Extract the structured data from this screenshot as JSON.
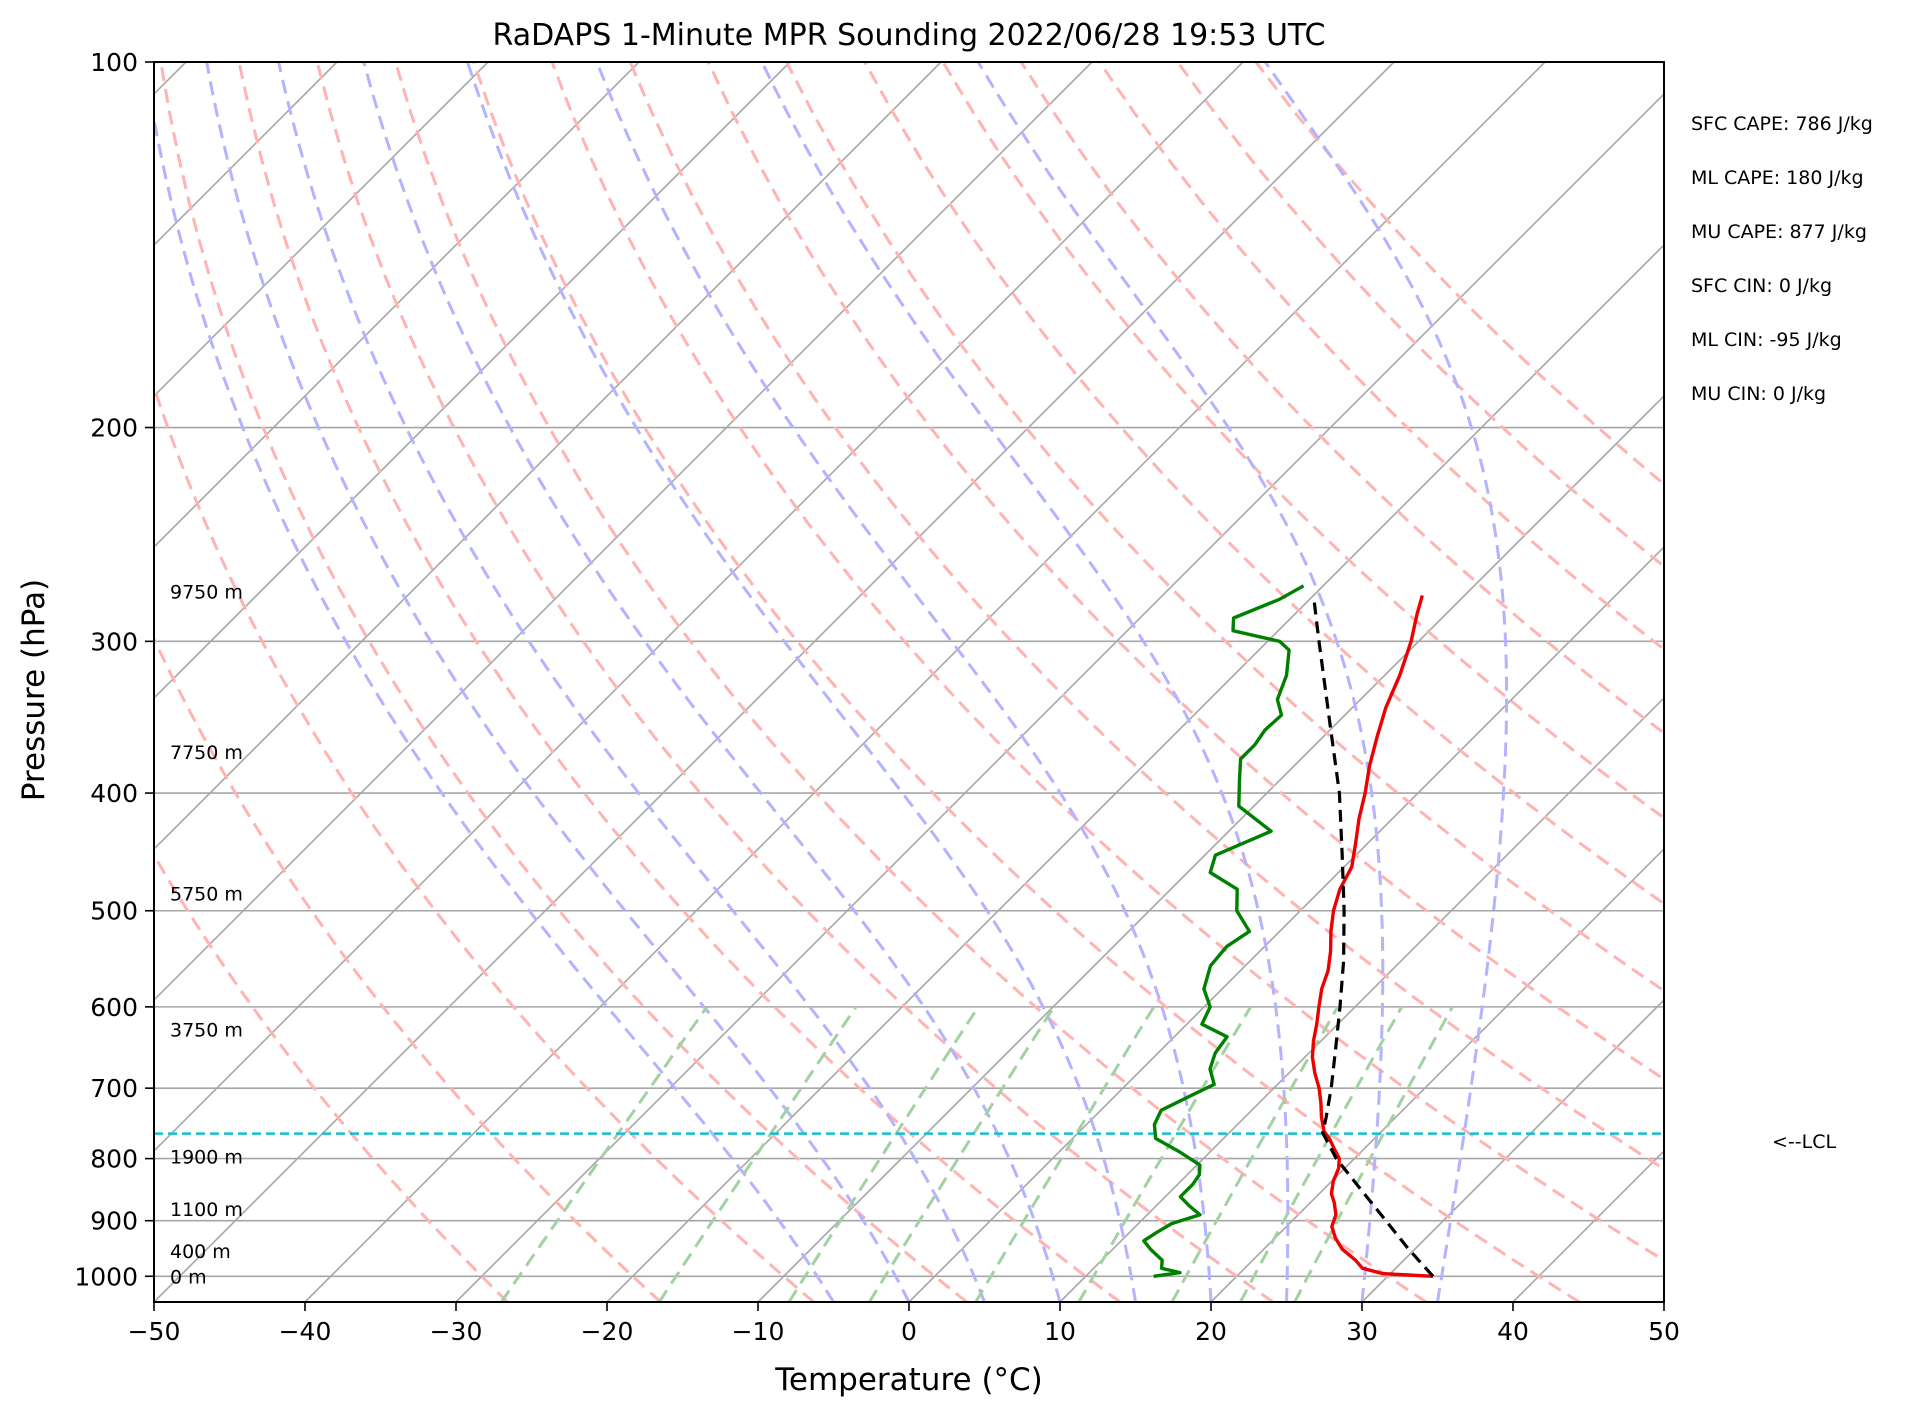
{
  "chart_data": {
    "type": "line",
    "subtype": "skew-T log-P sounding",
    "title": "RaDAPS 1-Minute MPR Sounding 2022/06/28 19:53 UTC",
    "xlabel": "Temperature (°C)",
    "ylabel": "Pressure (hPa)",
    "xlim": [
      -50,
      50
    ],
    "ylim": [
      1050,
      100
    ],
    "y_scale": "log",
    "x_ticks": [
      -50,
      -40,
      -30,
      -20,
      -10,
      0,
      10,
      20,
      30,
      40,
      50
    ],
    "x_tick_labels": [
      "−50",
      "−40",
      "−30",
      "−20",
      "−10",
      "0",
      "10",
      "20",
      "30",
      "40",
      "50"
    ],
    "y_ticks": [
      100,
      200,
      300,
      400,
      500,
      600,
      700,
      800,
      900,
      1000
    ],
    "y_tick_labels": [
      "100",
      "200",
      "300",
      "400",
      "500",
      "600",
      "700",
      "800",
      "900",
      "1000"
    ],
    "grid": true,
    "colors": {
      "temperature": "#ee0000",
      "dewpoint": "#008000",
      "parcel": "#000000",
      "lcl_line": "#17becf",
      "dry_adiabats": "#ffb3b3",
      "moist_adiabats": "#b3b3ff",
      "mixing_ratio": "#a3d1a3",
      "isotherms": "#a6a6a6"
    },
    "series": [
      {
        "role": "temperature",
        "points": [
          [
            1000,
            33.0
          ],
          [
            995,
            29.5
          ],
          [
            985,
            27.8
          ],
          [
            970,
            26.8
          ],
          [
            950,
            25.2
          ],
          [
            930,
            24.0
          ],
          [
            910,
            23.0
          ],
          [
            890,
            22.5
          ],
          [
            870,
            21.6
          ],
          [
            855,
            20.8
          ],
          [
            835,
            20.1
          ],
          [
            815,
            19.6
          ],
          [
            800,
            19.0
          ],
          [
            785,
            18.0
          ],
          [
            770,
            17.0
          ],
          [
            760,
            16.2
          ],
          [
            740,
            15.1
          ],
          [
            720,
            14.1
          ],
          [
            700,
            13.0
          ],
          [
            680,
            11.7
          ],
          [
            660,
            10.5
          ],
          [
            640,
            9.5
          ],
          [
            620,
            8.6
          ],
          [
            600,
            7.6
          ],
          [
            580,
            6.6
          ],
          [
            560,
            5.8
          ],
          [
            540,
            4.7
          ],
          [
            520,
            3.4
          ],
          [
            500,
            2.2
          ],
          [
            480,
            1.2
          ],
          [
            460,
            0.5
          ],
          [
            440,
            -0.8
          ],
          [
            420,
            -2.2
          ],
          [
            400,
            -3.5
          ],
          [
            380,
            -5.0
          ],
          [
            360,
            -6.4
          ],
          [
            340,
            -7.8
          ],
          [
            320,
            -9.0
          ],
          [
            300,
            -10.5
          ],
          [
            285,
            -11.9
          ],
          [
            275,
            -12.8
          ]
        ]
      },
      {
        "role": "dewpoint",
        "points": [
          [
            1000,
            14.5
          ],
          [
            993,
            16.0
          ],
          [
            985,
            14.5
          ],
          [
            970,
            14.0
          ],
          [
            950,
            12.5
          ],
          [
            935,
            11.5
          ],
          [
            920,
            11.8
          ],
          [
            905,
            12.2
          ],
          [
            890,
            13.5
          ],
          [
            875,
            12.2
          ],
          [
            860,
            11.0
          ],
          [
            840,
            11.0
          ],
          [
            825,
            10.8
          ],
          [
            810,
            10.2
          ],
          [
            790,
            8.0
          ],
          [
            770,
            5.5
          ],
          [
            750,
            4.5
          ],
          [
            730,
            4.0
          ],
          [
            710,
            5.0
          ],
          [
            695,
            5.8
          ],
          [
            675,
            4.5
          ],
          [
            655,
            3.8
          ],
          [
            635,
            3.5
          ],
          [
            620,
            1.0
          ],
          [
            600,
            0.4
          ],
          [
            580,
            -1.2
          ],
          [
            555,
            -2.3
          ],
          [
            535,
            -2.5
          ],
          [
            520,
            -2.0
          ],
          [
            500,
            -4.2
          ],
          [
            480,
            -5.6
          ],
          [
            465,
            -8.5
          ],
          [
            450,
            -9.3
          ],
          [
            430,
            -7.2
          ],
          [
            410,
            -11.0
          ],
          [
            390,
            -12.7
          ],
          [
            375,
            -14.0
          ],
          [
            365,
            -14.0
          ],
          [
            355,
            -14.3
          ],
          [
            345,
            -14.2
          ],
          [
            335,
            -15.5
          ],
          [
            320,
            -16.5
          ],
          [
            305,
            -18.0
          ],
          [
            300,
            -19.2
          ],
          [
            294,
            -23.0
          ],
          [
            287,
            -23.8
          ],
          [
            277,
            -22.0
          ],
          [
            270,
            -21.3
          ]
        ]
      },
      {
        "role": "parcel",
        "points": [
          [
            1000,
            33.0
          ],
          [
            950,
            29.6
          ],
          [
            900,
            26.2
          ],
          [
            850,
            22.6
          ],
          [
            800,
            18.8
          ],
          [
            762,
            16.2
          ],
          [
            740,
            15.4
          ],
          [
            700,
            13.8
          ],
          [
            650,
            11.5
          ],
          [
            600,
            9.0
          ],
          [
            550,
            6.2
          ],
          [
            500,
            2.9
          ],
          [
            450,
            -0.9
          ],
          [
            400,
            -5.2
          ],
          [
            350,
            -10.5
          ],
          [
            300,
            -16.6
          ],
          [
            275,
            -20.0
          ]
        ]
      }
    ],
    "lcl": {
      "pressure": 763,
      "label": "<--LCL"
    },
    "height_labels": [
      {
        "pressure": 1000,
        "label": "0 m"
      },
      {
        "pressure": 953,
        "label": "400 m"
      },
      {
        "pressure": 880,
        "label": "1100 m"
      },
      {
        "pressure": 797,
        "label": "1900 m"
      },
      {
        "pressure": 626,
        "label": "3750 m"
      },
      {
        "pressure": 484,
        "label": "5750 m"
      },
      {
        "pressure": 370,
        "label": "7750 m"
      },
      {
        "pressure": 273,
        "label": "9750 m"
      }
    ],
    "indices": [
      "SFC CAPE: 786 J/kg",
      "ML CAPE: 180 J/kg",
      "MU CAPE: 877 J/kg",
      "SFC CIN: 0 J/kg",
      "ML CIN: -95 J/kg",
      "MU CIN: 0 J/kg"
    ],
    "dry_adiabat_thetas_c": [
      -30,
      -20,
      -10,
      0,
      10,
      20,
      30,
      40,
      50,
      60,
      70,
      80,
      90,
      100,
      110,
      120,
      130,
      140
    ],
    "moist_adiabat_start_temps_c": [
      -5,
      0,
      5,
      10,
      15,
      20,
      25,
      30,
      35
    ],
    "mixing_ratio_lines_gkg": [
      0.4,
      1,
      2,
      3,
      5,
      8,
      12,
      16,
      20
    ]
  }
}
